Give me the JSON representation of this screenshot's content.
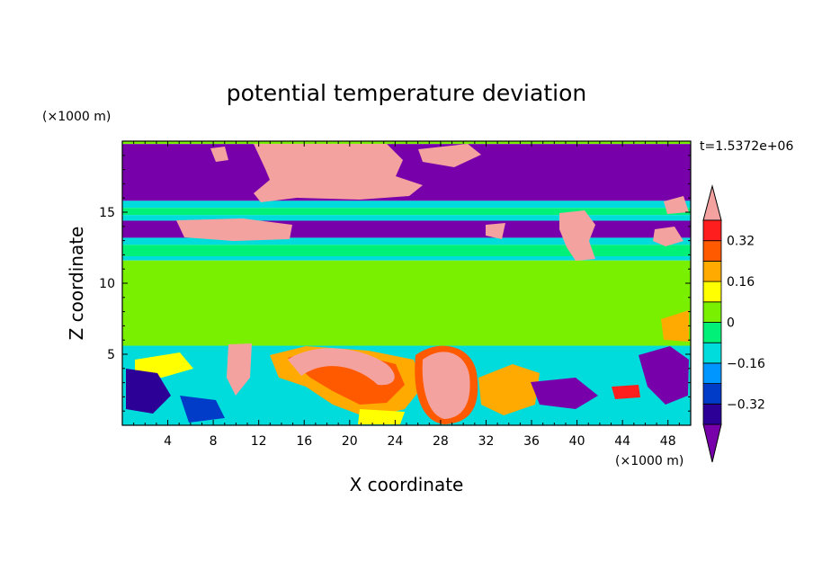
{
  "chart_data": {
    "type": "heatmap",
    "title": "potential temperature deviation",
    "time_label": "t=1.5372e+06",
    "xlabel": "X coordinate",
    "ylabel": "Z coordinate",
    "x_unit": "(×1000 m)",
    "y_unit": "(×1000 m)",
    "xlim": [
      0,
      50
    ],
    "ylim": [
      0,
      20
    ],
    "x_ticks": [
      4,
      8,
      12,
      16,
      20,
      24,
      28,
      32,
      36,
      40,
      44,
      48
    ],
    "y_ticks": [
      5,
      10,
      15
    ],
    "colorbar": {
      "levels": [
        -0.4,
        -0.32,
        -0.24,
        -0.16,
        -0.08,
        0,
        0.08,
        0.16,
        0.24,
        0.32,
        0.4
      ],
      "labels": [
        "0.32",
        "0.16",
        "0",
        "−0.16",
        "−0.32"
      ],
      "label_values": [
        0.32,
        0.16,
        0,
        -0.16,
        -0.32
      ],
      "colors": [
        "#2c0096",
        "#003cc8",
        "#0096ff",
        "#00dcdc",
        "#00f078",
        "#78f000",
        "#ffff00",
        "#ffaa00",
        "#ff5a00",
        "#ff1e1e"
      ],
      "under_color": "#7800aa",
      "over_color": "#f4a2a0"
    },
    "bands": [
      {
        "z": [
          19.8,
          20.0
        ],
        "level": "green"
      },
      {
        "z": [
          15.8,
          19.8
        ],
        "level": "under"
      },
      {
        "z": [
          15.3,
          15.8
        ],
        "level": "cyan"
      },
      {
        "z": [
          14.8,
          15.3
        ],
        "level": "sea"
      },
      {
        "z": [
          14.4,
          14.8
        ],
        "level": "cyan"
      },
      {
        "z": [
          13.2,
          14.4
        ],
        "level": "under"
      },
      {
        "z": [
          12.7,
          13.2
        ],
        "level": "cyan"
      },
      {
        "z": [
          11.9,
          12.7
        ],
        "level": "sea"
      },
      {
        "z": [
          11.6,
          11.9
        ],
        "level": "cyan"
      },
      {
        "z": [
          5.6,
          11.6
        ],
        "level": "green"
      },
      {
        "z": [
          0,
          5.6
        ],
        "level": "mixed"
      }
    ]
  }
}
